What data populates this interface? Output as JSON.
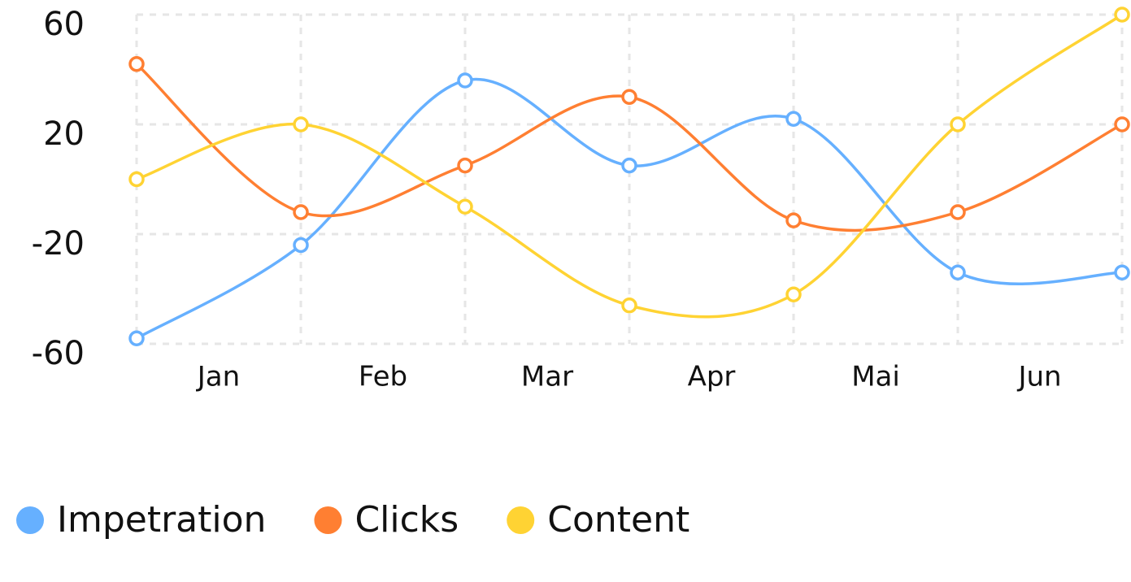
{
  "chart_data": {
    "type": "line",
    "categories": [
      "Jan",
      "Feb",
      "Mar",
      "Apr",
      "Mai",
      "Jun",
      null
    ],
    "series": [
      {
        "name": "Impetration",
        "color": "#66b0ff",
        "values": [
          -58,
          -24,
          36,
          5,
          22,
          -34,
          -34
        ]
      },
      {
        "name": "Clicks",
        "color": "#ff7f32",
        "values": [
          42,
          -12,
          5,
          30,
          -15,
          -12,
          20
        ]
      },
      {
        "name": "Content",
        "color": "#ffd333",
        "values": [
          0,
          20,
          -10,
          -46,
          -42,
          20,
          60
        ]
      }
    ],
    "ylim": [
      -60,
      60
    ],
    "yticks": [
      -60,
      -20,
      20,
      60
    ],
    "grid": true,
    "smooth": true,
    "legend": "bottom-left"
  }
}
